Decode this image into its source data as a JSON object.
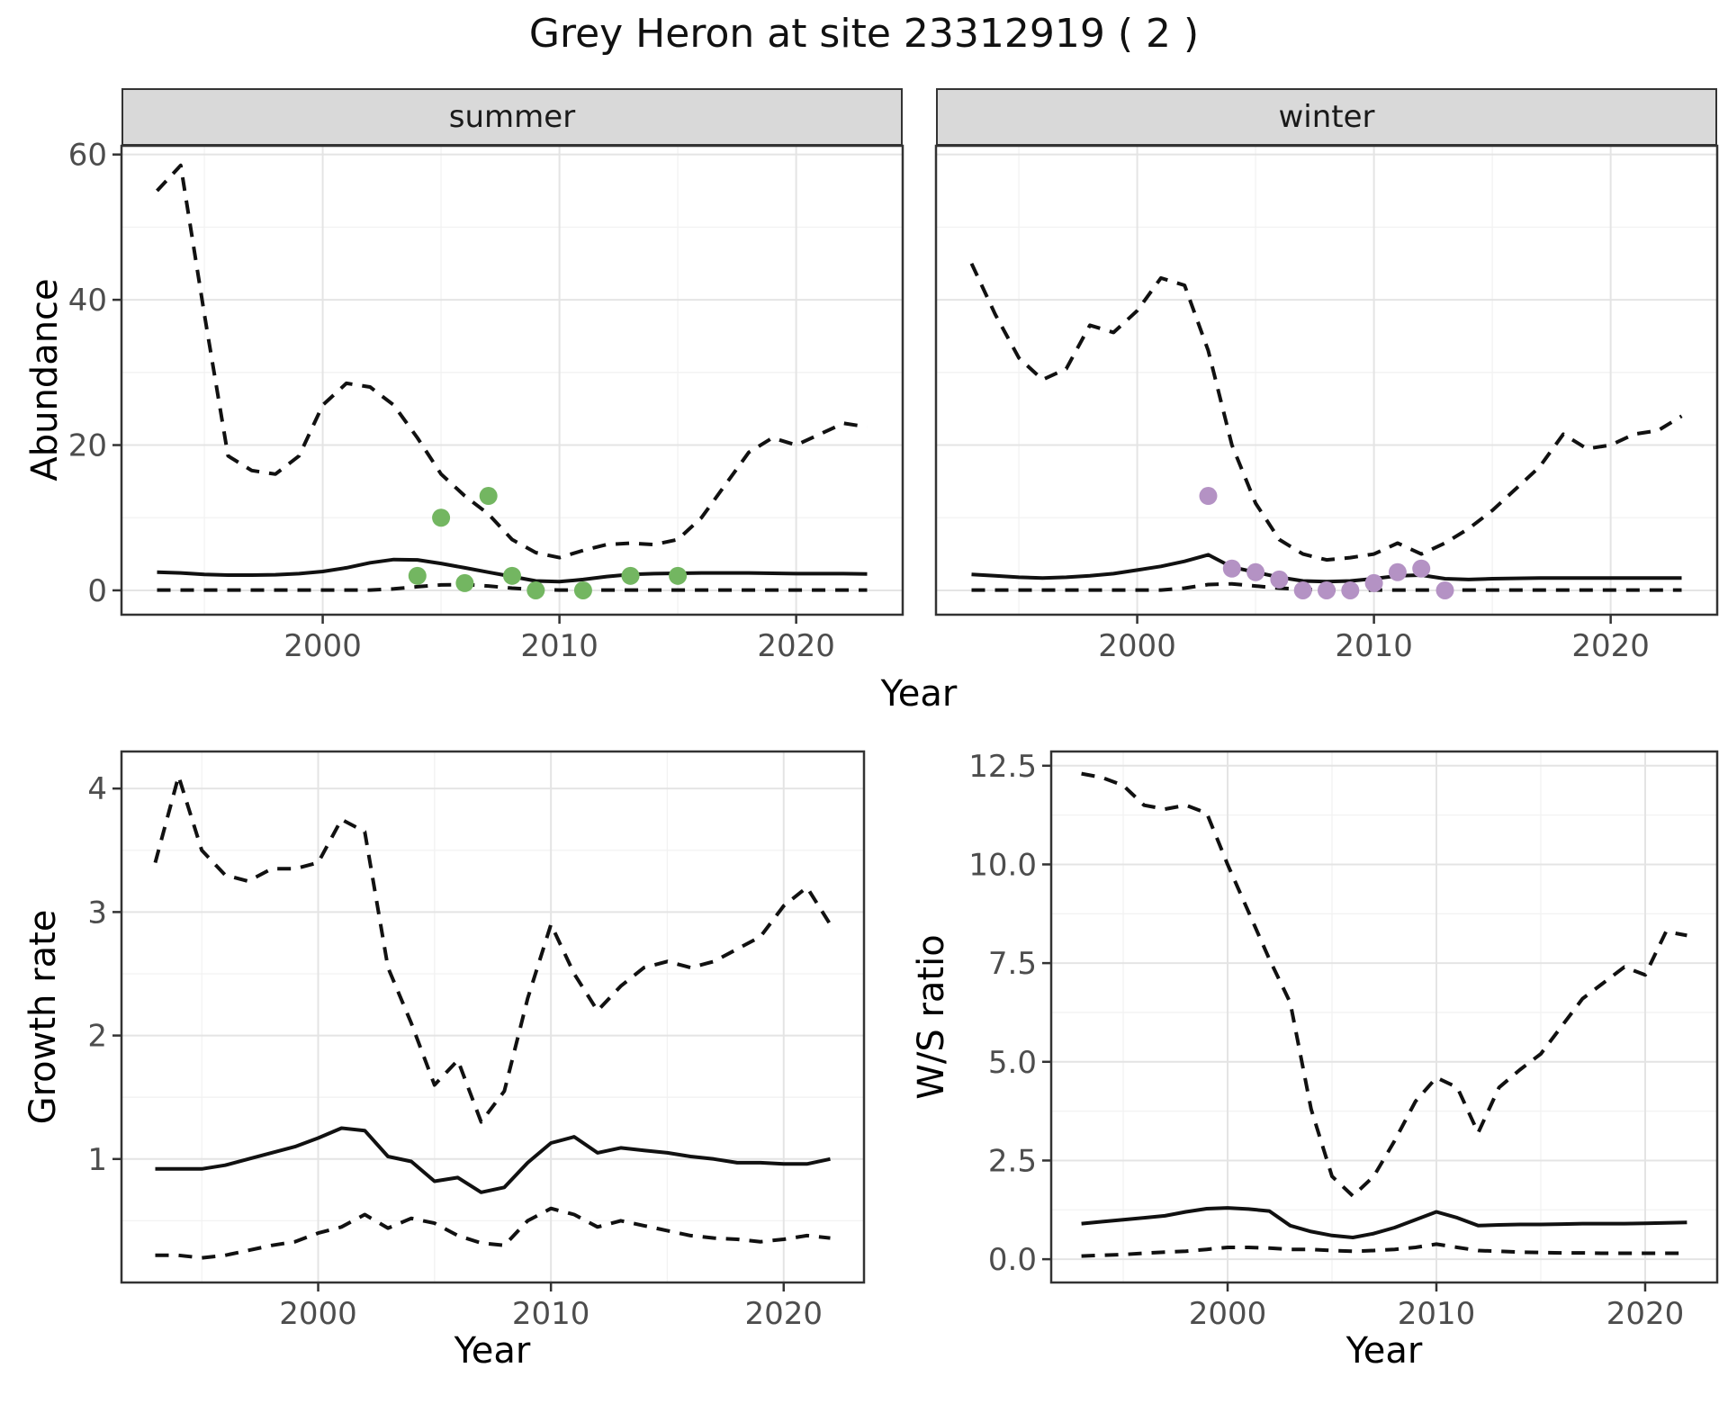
{
  "title": "Grey Heron at site 23312919 ( 2 )",
  "facets": [
    {
      "label": "summer"
    },
    {
      "label": "winter"
    }
  ],
  "colors": {
    "summer_points": "#73b661",
    "winter_points": "#b492c4",
    "line": "#111111",
    "strip_fill": "#d9d9d9",
    "panel_border": "#333333",
    "grid_major": "#e4e4e4",
    "grid_minor": "#f2f2f2",
    "tick_text": "#4d4d4d"
  },
  "chart_data": [
    {
      "id": "abundance_summer",
      "type": "line",
      "facet": "summer",
      "title": "",
      "xlabel": "Year",
      "ylabel": "Abundance",
      "x_domain": [
        1991.5,
        2024.5
      ],
      "y_domain": [
        -3.35,
        61.2
      ],
      "x_ticks": [
        2000,
        2010,
        2020
      ],
      "x_tick_labels": [
        "2000",
        "2010",
        "2020"
      ],
      "x_minor": [
        1995,
        2005,
        2015
      ],
      "y_ticks": [
        0,
        20,
        40,
        60
      ],
      "y_tick_labels": [
        "0",
        "20",
        "40",
        "60"
      ],
      "y_minor": [
        10,
        30,
        50
      ],
      "grid": true,
      "legend": "none",
      "years": [
        1993,
        1994,
        1995,
        1996,
        1997,
        1998,
        1999,
        2000,
        2001,
        2002,
        2003,
        2004,
        2005,
        2006,
        2007,
        2008,
        2009,
        2010,
        2011,
        2012,
        2013,
        2014,
        2015,
        2016,
        2017,
        2018,
        2019,
        2020,
        2021,
        2022,
        2023
      ],
      "series": [
        {
          "name": "upper_ci",
          "style": "dashed",
          "values": [
            55,
            58.5,
            38,
            18.5,
            16.5,
            16,
            18.5,
            25.5,
            28.5,
            28,
            25.5,
            21,
            16,
            13,
            10.5,
            7,
            5.2,
            4.5,
            5.5,
            6.3,
            6.5,
            6.3,
            7,
            10,
            14.5,
            19,
            21,
            20,
            21.5,
            23,
            22.5
          ]
        },
        {
          "name": "estimate",
          "style": "solid",
          "values": [
            2.5,
            2.4,
            2.2,
            2.1,
            2.1,
            2.15,
            2.3,
            2.6,
            3.1,
            3.8,
            4.25,
            4.2,
            3.7,
            3.1,
            2.5,
            1.9,
            1.3,
            1.2,
            1.5,
            1.9,
            2.2,
            2.3,
            2.35,
            2.4,
            2.4,
            2.4,
            2.35,
            2.3,
            2.3,
            2.3,
            2.25
          ]
        },
        {
          "name": "lower_ci",
          "style": "dashed",
          "values": [
            0.05,
            0.05,
            0.05,
            0.05,
            0.05,
            0.05,
            0.05,
            0.05,
            0.05,
            0.05,
            0.2,
            0.5,
            0.75,
            0.8,
            0.6,
            0.3,
            0.1,
            0.05,
            0.05,
            0.05,
            0.05,
            0.05,
            0.05,
            0.05,
            0.05,
            0.05,
            0.05,
            0.05,
            0.05,
            0.05,
            0.05
          ]
        }
      ],
      "points": {
        "name": "summer_observations",
        "color": "#73b661",
        "x": [
          2004,
          2005,
          2006,
          2007,
          2008,
          2009,
          2011,
          2013,
          2015
        ],
        "y": [
          2,
          10,
          1,
          13,
          2,
          0,
          0,
          2,
          2
        ]
      }
    },
    {
      "id": "abundance_winter",
      "type": "line",
      "facet": "winter",
      "title": "",
      "xlabel": "Year",
      "ylabel": "Abundance",
      "x_domain": [
        1991.5,
        2024.5
      ],
      "y_domain": [
        -3.35,
        61.2
      ],
      "x_ticks": [
        2000,
        2010,
        2020
      ],
      "x_tick_labels": [
        "2000",
        "2010",
        "2020"
      ],
      "x_minor": [
        1995,
        2005,
        2015
      ],
      "y_ticks": [
        0,
        20,
        40,
        60
      ],
      "y_tick_labels": [
        "0",
        "20",
        "40",
        "60"
      ],
      "y_minor": [
        10,
        30,
        50
      ],
      "grid": true,
      "legend": "none",
      "years": [
        1993,
        1994,
        1995,
        1996,
        1997,
        1998,
        1999,
        2000,
        2001,
        2002,
        2003,
        2004,
        2005,
        2006,
        2007,
        2008,
        2009,
        2010,
        2011,
        2012,
        2013,
        2014,
        2015,
        2016,
        2017,
        2018,
        2019,
        2020,
        2021,
        2022,
        2023
      ],
      "series": [
        {
          "name": "upper_ci",
          "style": "dashed",
          "values": [
            45,
            38,
            32,
            29,
            30.5,
            36.5,
            35.5,
            38.5,
            43,
            42,
            33,
            20,
            12,
            7,
            5,
            4.2,
            4.5,
            5,
            6.5,
            5,
            6.5,
            8.5,
            11,
            14,
            17,
            21.5,
            19.5,
            20,
            21.5,
            22,
            24
          ]
        },
        {
          "name": "estimate",
          "style": "solid",
          "values": [
            2.2,
            2,
            1.8,
            1.7,
            1.8,
            2,
            2.3,
            2.8,
            3.3,
            4,
            4.9,
            3.2,
            2.5,
            1.8,
            1.3,
            1.2,
            1.3,
            1.6,
            2,
            2.1,
            1.6,
            1.5,
            1.6,
            1.65,
            1.7,
            1.7,
            1.7,
            1.7,
            1.7,
            1.7,
            1.7
          ]
        },
        {
          "name": "lower_ci",
          "style": "dashed",
          "values": [
            0.05,
            0.05,
            0.05,
            0.05,
            0.05,
            0.05,
            0.05,
            0.05,
            0.05,
            0.3,
            0.8,
            0.9,
            0.6,
            0.3,
            0.15,
            0.05,
            0.05,
            0.05,
            0.05,
            0.05,
            0.05,
            0.05,
            0.05,
            0.05,
            0.05,
            0.05,
            0.05,
            0.05,
            0.05,
            0.05,
            0.05
          ]
        }
      ],
      "points": {
        "name": "winter_observations",
        "color": "#b492c4",
        "x": [
          2003,
          2004,
          2005,
          2006,
          2007,
          2008,
          2009,
          2010,
          2011,
          2012,
          2013
        ],
        "y": [
          13,
          3,
          2.5,
          1.5,
          0,
          0,
          0,
          1,
          2.5,
          3,
          0
        ]
      }
    },
    {
      "id": "growth_rate",
      "type": "line",
      "facet": "",
      "title": "",
      "xlabel": "Year",
      "ylabel": "Growth rate",
      "x_domain": [
        1991.55,
        2023.45
      ],
      "y_domain": [
        0,
        4.3
      ],
      "x_ticks": [
        2000,
        2010,
        2020
      ],
      "x_tick_labels": [
        "2000",
        "2010",
        "2020"
      ],
      "x_minor": [
        1995,
        2005,
        2015
      ],
      "y_ticks": [
        1,
        2,
        3,
        4
      ],
      "y_tick_labels": [
        "1",
        "2",
        "3",
        "4"
      ],
      "y_minor": [
        0.5,
        1.5,
        2.5,
        3.5
      ],
      "grid": true,
      "legend": "none",
      "years": [
        1993,
        1994,
        1995,
        1996,
        1997,
        1998,
        1999,
        2000,
        2001,
        2002,
        2003,
        2004,
        2005,
        2006,
        2007,
        2008,
        2009,
        2010,
        2011,
        2012,
        2013,
        2014,
        2015,
        2016,
        2017,
        2018,
        2019,
        2020,
        2021,
        2022
      ],
      "series": [
        {
          "name": "upper_ci",
          "style": "dashed",
          "values": [
            3.4,
            4.1,
            3.5,
            3.3,
            3.25,
            3.35,
            3.35,
            3.4,
            3.75,
            3.65,
            2.55,
            2.1,
            1.6,
            1.8,
            1.3,
            1.55,
            2.3,
            2.9,
            2.5,
            2.2,
            2.4,
            2.55,
            2.6,
            2.55,
            2.6,
            2.7,
            2.8,
            3.05,
            3.2,
            2.9
          ]
        },
        {
          "name": "estimate",
          "style": "solid",
          "values": [
            0.92,
            0.92,
            0.92,
            0.95,
            1.0,
            1.05,
            1.1,
            1.17,
            1.25,
            1.23,
            1.02,
            0.98,
            0.82,
            0.85,
            0.73,
            0.77,
            0.97,
            1.13,
            1.18,
            1.05,
            1.09,
            1.07,
            1.05,
            1.02,
            1.0,
            0.97,
            0.97,
            0.96,
            0.96,
            1.0
          ]
        },
        {
          "name": "lower_ci",
          "style": "dashed",
          "values": [
            0.22,
            0.22,
            0.2,
            0.22,
            0.26,
            0.3,
            0.33,
            0.4,
            0.45,
            0.55,
            0.44,
            0.52,
            0.48,
            0.38,
            0.32,
            0.3,
            0.5,
            0.6,
            0.55,
            0.45,
            0.5,
            0.46,
            0.42,
            0.38,
            0.36,
            0.35,
            0.33,
            0.35,
            0.38,
            0.36
          ]
        }
      ],
      "points": null
    },
    {
      "id": "ws_ratio",
      "type": "line",
      "facet": "",
      "title": "",
      "xlabel": "Year",
      "ylabel": "W/S ratio",
      "x_domain": [
        1991.55,
        2023.45
      ],
      "y_domain": [
        -0.59,
        12.86
      ],
      "x_ticks": [
        2000,
        2010,
        2020
      ],
      "x_tick_labels": [
        "2000",
        "2010",
        "2020"
      ],
      "x_minor": [
        1995,
        2005,
        2015
      ],
      "y_ticks": [
        0,
        2.5,
        5,
        7.5,
        10,
        12.5
      ],
      "y_tick_labels": [
        "0.0",
        "2.5",
        "5.0",
        "7.5",
        "10.0",
        "12.5"
      ],
      "y_minor": [
        1.25,
        3.75,
        6.25,
        8.75,
        11.25
      ],
      "grid": true,
      "legend": "none",
      "years": [
        1993,
        1994,
        1995,
        1996,
        1997,
        1998,
        1999,
        2000,
        2001,
        2002,
        2003,
        2004,
        2005,
        2006,
        2007,
        2008,
        2009,
        2010,
        2011,
        2012,
        2013,
        2014,
        2015,
        2016,
        2017,
        2018,
        2019,
        2020,
        2021,
        2022
      ],
      "series": [
        {
          "name": "upper_ci",
          "style": "dashed",
          "values": [
            12.3,
            12.2,
            12.0,
            11.5,
            11.4,
            11.5,
            11.3,
            10.0,
            8.8,
            7.6,
            6.5,
            3.8,
            2.1,
            1.6,
            2.1,
            3.0,
            4.0,
            4.6,
            4.35,
            3.2,
            4.35,
            4.8,
            5.2,
            5.9,
            6.6,
            7.0,
            7.4,
            7.2,
            8.3,
            8.2
          ]
        },
        {
          "name": "estimate",
          "style": "solid",
          "values": [
            0.9,
            0.95,
            1.0,
            1.05,
            1.1,
            1.2,
            1.28,
            1.3,
            1.27,
            1.22,
            0.85,
            0.7,
            0.6,
            0.55,
            0.65,
            0.8,
            1.0,
            1.2,
            1.05,
            0.85,
            0.87,
            0.88,
            0.88,
            0.89,
            0.9,
            0.9,
            0.9,
            0.91,
            0.92,
            0.93
          ]
        },
        {
          "name": "lower_ci",
          "style": "dashed",
          "values": [
            0.08,
            0.1,
            0.12,
            0.15,
            0.18,
            0.2,
            0.25,
            0.3,
            0.3,
            0.28,
            0.25,
            0.25,
            0.22,
            0.2,
            0.22,
            0.25,
            0.3,
            0.38,
            0.3,
            0.22,
            0.2,
            0.18,
            0.17,
            0.16,
            0.16,
            0.15,
            0.15,
            0.15,
            0.15,
            0.15
          ]
        }
      ],
      "points": null
    }
  ]
}
